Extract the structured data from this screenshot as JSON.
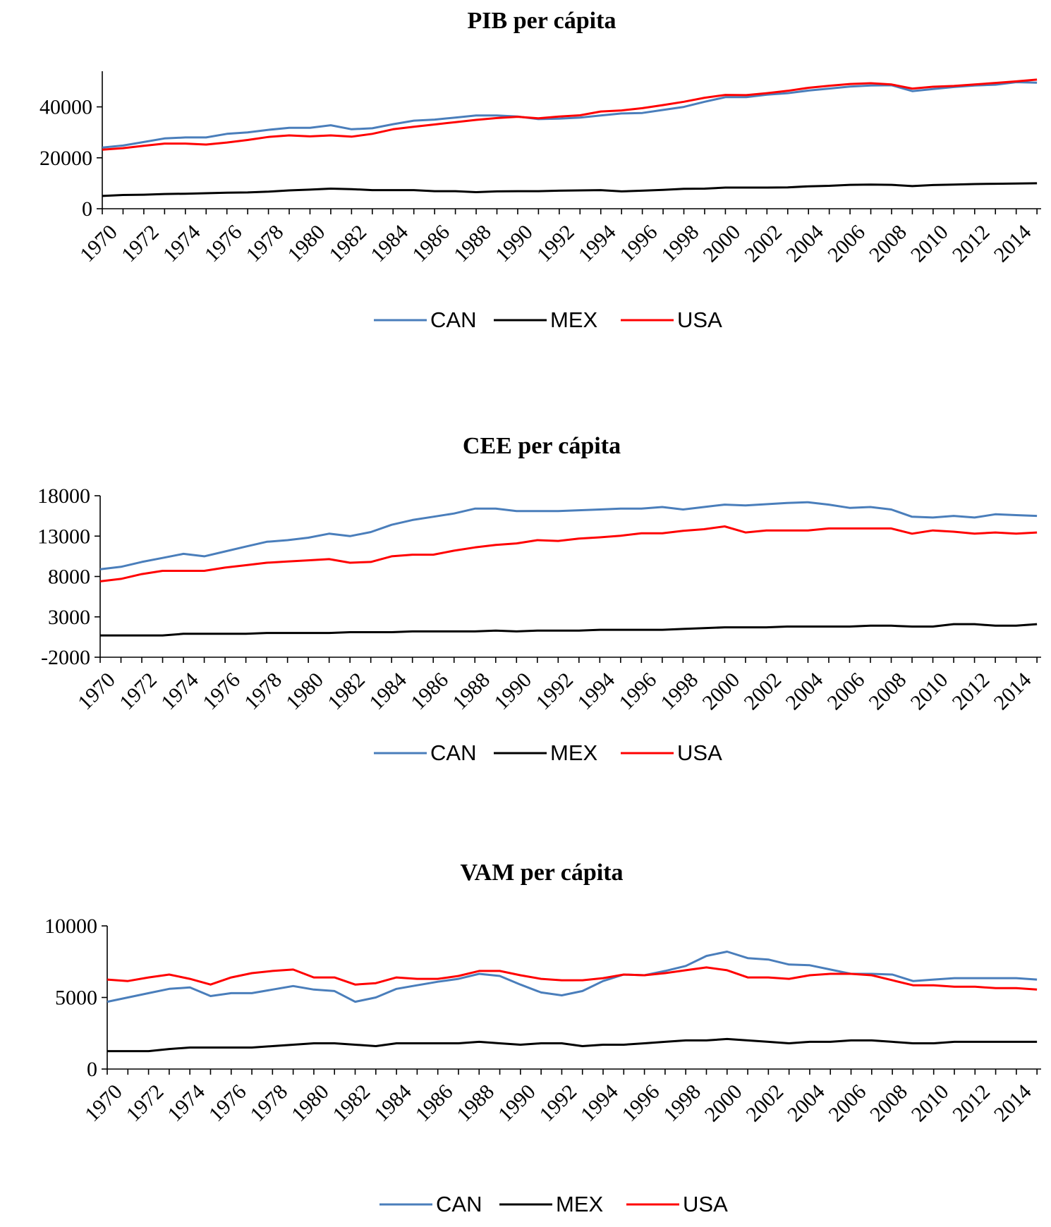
{
  "chart_data": [
    {
      "type": "line",
      "title": "PIB per cápita",
      "x": [
        1970,
        1971,
        1972,
        1973,
        1974,
        1975,
        1976,
        1977,
        1978,
        1979,
        1980,
        1981,
        1982,
        1983,
        1984,
        1985,
        1986,
        1987,
        1988,
        1989,
        1990,
        1991,
        1992,
        1993,
        1994,
        1995,
        1996,
        1997,
        1998,
        1999,
        2000,
        2001,
        2002,
        2003,
        2004,
        2005,
        2006,
        2007,
        2008,
        2009,
        2010,
        2011,
        2012,
        2013,
        2014,
        2015
      ],
      "x_tick_labels": [
        "1970",
        "1972",
        "1974",
        "1976",
        "1978",
        "1980",
        "1982",
        "1984",
        "1986",
        "1988",
        "1990",
        "1992",
        "1994",
        "1996",
        "1998",
        "2000",
        "2002",
        "2004",
        "2006",
        "2008",
        "2010",
        "2012",
        "2014"
      ],
      "y_ticks": [
        0,
        20000,
        40000
      ],
      "ylim": [
        0,
        54000
      ],
      "series": [
        {
          "name": "CAN",
          "color": "#4a7ebb",
          "values": [
            24000,
            24800,
            26200,
            27600,
            28000,
            28000,
            29400,
            30000,
            31000,
            31800,
            31800,
            32800,
            31200,
            31600,
            33200,
            34600,
            35000,
            35800,
            36600,
            36600,
            36200,
            35200,
            35400,
            35800,
            36600,
            37400,
            37600,
            38800,
            40000,
            42000,
            43800,
            43800,
            44800,
            45400,
            46400,
            47200,
            48000,
            48400,
            48500,
            46200,
            47000,
            47800,
            48400,
            48700,
            49700,
            49500
          ]
        },
        {
          "name": "MEX",
          "color": "#000000",
          "values": [
            5000,
            5400,
            5500,
            5800,
            5900,
            6100,
            6300,
            6400,
            6700,
            7200,
            7500,
            7900,
            7700,
            7300,
            7300,
            7300,
            6900,
            6900,
            6500,
            6800,
            6900,
            6900,
            7100,
            7200,
            7300,
            6800,
            7100,
            7400,
            7800,
            7900,
            8300,
            8300,
            8300,
            8400,
            8800,
            9000,
            9400,
            9500,
            9400,
            8900,
            9300,
            9500,
            9700,
            9800,
            9900,
            10000
          ]
        },
        {
          "name": "USA",
          "color": "#ff0000",
          "values": [
            23200,
            23800,
            24700,
            25600,
            25600,
            25200,
            26000,
            27000,
            28200,
            28800,
            28400,
            28800,
            28300,
            29400,
            31200,
            32200,
            33100,
            34000,
            34900,
            35600,
            36100,
            35500,
            36200,
            36700,
            38200,
            38600,
            39500,
            40700,
            42000,
            43600,
            44700,
            44600,
            45400,
            46300,
            47500,
            48300,
            49000,
            49300,
            48800,
            47200,
            47900,
            48200,
            48800,
            49400,
            50000,
            50700
          ]
        }
      ],
      "legend_position": "bottom"
    },
    {
      "type": "line",
      "title": "CEE per cápita",
      "x": [
        1970,
        1971,
        1972,
        1973,
        1974,
        1975,
        1976,
        1977,
        1978,
        1979,
        1980,
        1981,
        1982,
        1983,
        1984,
        1985,
        1986,
        1987,
        1988,
        1989,
        1990,
        1991,
        1992,
        1993,
        1994,
        1995,
        1996,
        1997,
        1998,
        1999,
        2000,
        2001,
        2002,
        2003,
        2004,
        2005,
        2006,
        2007,
        2008,
        2009,
        2010,
        2011,
        2012,
        2013,
        2014,
        2015
      ],
      "x_tick_labels": [
        "1970",
        "1972",
        "1974",
        "1976",
        "1978",
        "1980",
        "1982",
        "1984",
        "1986",
        "1988",
        "1990",
        "1992",
        "1994",
        "1996",
        "1998",
        "2000",
        "2002",
        "2004",
        "2006",
        "2008",
        "2010",
        "2012",
        "2014"
      ],
      "y_ticks": [
        -2000,
        3000,
        8000,
        13000,
        18000
      ],
      "ylim": [
        -2000,
        18000
      ],
      "series": [
        {
          "name": "CAN",
          "color": "#4a7ebb",
          "values": [
            8900,
            9200,
            9800,
            10300,
            10800,
            10500,
            11100,
            11700,
            12300,
            12500,
            12800,
            13300,
            13000,
            13500,
            14400,
            15000,
            15400,
            15800,
            16400,
            16400,
            16100,
            16100,
            16100,
            16200,
            16300,
            16400,
            16400,
            16600,
            16300,
            16600,
            16900,
            16800,
            16950,
            17100,
            17200,
            16900,
            16500,
            16600,
            16300,
            15400,
            15300,
            15500,
            15300,
            15700,
            15600,
            15500
          ]
        },
        {
          "name": "MEX",
          "color": "#000000",
          "values": [
            700,
            700,
            700,
            700,
            900,
            900,
            900,
            900,
            1000,
            1000,
            1000,
            1000,
            1100,
            1100,
            1100,
            1200,
            1200,
            1200,
            1200,
            1300,
            1200,
            1300,
            1300,
            1300,
            1400,
            1400,
            1400,
            1400,
            1500,
            1600,
            1700,
            1700,
            1700,
            1800,
            1800,
            1800,
            1800,
            1900,
            1900,
            1800,
            1800,
            2100,
            2100,
            1900,
            1900,
            2100
          ]
        },
        {
          "name": "USA",
          "color": "#ff0000",
          "values": [
            7400,
            7700,
            8300,
            8700,
            8700,
            8700,
            9100,
            9400,
            9700,
            9850,
            10000,
            10150,
            9700,
            9800,
            10500,
            10700,
            10700,
            11200,
            11600,
            11900,
            12100,
            12500,
            12400,
            12700,
            12850,
            13050,
            13350,
            13350,
            13650,
            13850,
            14200,
            13450,
            13700,
            13700,
            13700,
            13950,
            13950,
            13950,
            13950,
            13300,
            13700,
            13550,
            13300,
            13450,
            13300,
            13450
          ]
        }
      ],
      "legend_position": "bottom"
    },
    {
      "type": "line",
      "title": "VAM per cápita",
      "x": [
        1970,
        1971,
        1972,
        1973,
        1974,
        1975,
        1976,
        1977,
        1978,
        1979,
        1980,
        1981,
        1982,
        1983,
        1984,
        1985,
        1986,
        1987,
        1988,
        1989,
        1990,
        1991,
        1992,
        1993,
        1994,
        1995,
        1996,
        1997,
        1998,
        1999,
        2000,
        2001,
        2002,
        2003,
        2004,
        2005,
        2006,
        2007,
        2008,
        2009,
        2010,
        2011,
        2012,
        2013,
        2014,
        2015
      ],
      "x_tick_labels": [
        "1970",
        "1972",
        "1974",
        "1976",
        "1978",
        "1980",
        "1982",
        "1984",
        "1986",
        "1988",
        "1990",
        "1992",
        "1994",
        "1996",
        "1998",
        "2000",
        "2002",
        "2004",
        "2006",
        "2008",
        "2010",
        "2012",
        "2014"
      ],
      "y_ticks": [
        0,
        5000,
        10000
      ],
      "ylim": [
        0,
        10000
      ],
      "series": [
        {
          "name": "CAN",
          "color": "#4a7ebb",
          "values": [
            4700,
            5000,
            5300,
            5600,
            5700,
            5100,
            5300,
            5300,
            5550,
            5800,
            5550,
            5450,
            4700,
            5000,
            5600,
            5850,
            6100,
            6300,
            6650,
            6500,
            5900,
            5350,
            5150,
            5450,
            6150,
            6600,
            6550,
            6850,
            7200,
            7900,
            8200,
            7750,
            7650,
            7300,
            7250,
            6950,
            6650,
            6650,
            6600,
            6150,
            6250,
            6350,
            6350,
            6350,
            6350,
            6250
          ]
        },
        {
          "name": "MEX",
          "color": "#000000",
          "values": [
            1250,
            1250,
            1250,
            1400,
            1500,
            1500,
            1500,
            1500,
            1600,
            1700,
            1800,
            1800,
            1700,
            1600,
            1800,
            1800,
            1800,
            1800,
            1900,
            1800,
            1700,
            1800,
            1800,
            1600,
            1700,
            1700,
            1800,
            1900,
            2000,
            2000,
            2100,
            2000,
            1900,
            1800,
            1900,
            1900,
            2000,
            2000,
            1900,
            1800,
            1800,
            1900,
            1900,
            1900,
            1900,
            1900
          ]
        },
        {
          "name": "USA",
          "color": "#ff0000",
          "values": [
            6250,
            6150,
            6400,
            6600,
            6300,
            5900,
            6400,
            6700,
            6850,
            6950,
            6400,
            6400,
            5900,
            6000,
            6400,
            6300,
            6300,
            6500,
            6850,
            6850,
            6550,
            6300,
            6200,
            6200,
            6350,
            6600,
            6550,
            6700,
            6900,
            7100,
            6900,
            6400,
            6400,
            6300,
            6550,
            6650,
            6650,
            6550,
            6200,
            5850,
            5850,
            5750,
            5750,
            5650,
            5650,
            5550
          ]
        }
      ],
      "legend_position": "bottom"
    }
  ]
}
